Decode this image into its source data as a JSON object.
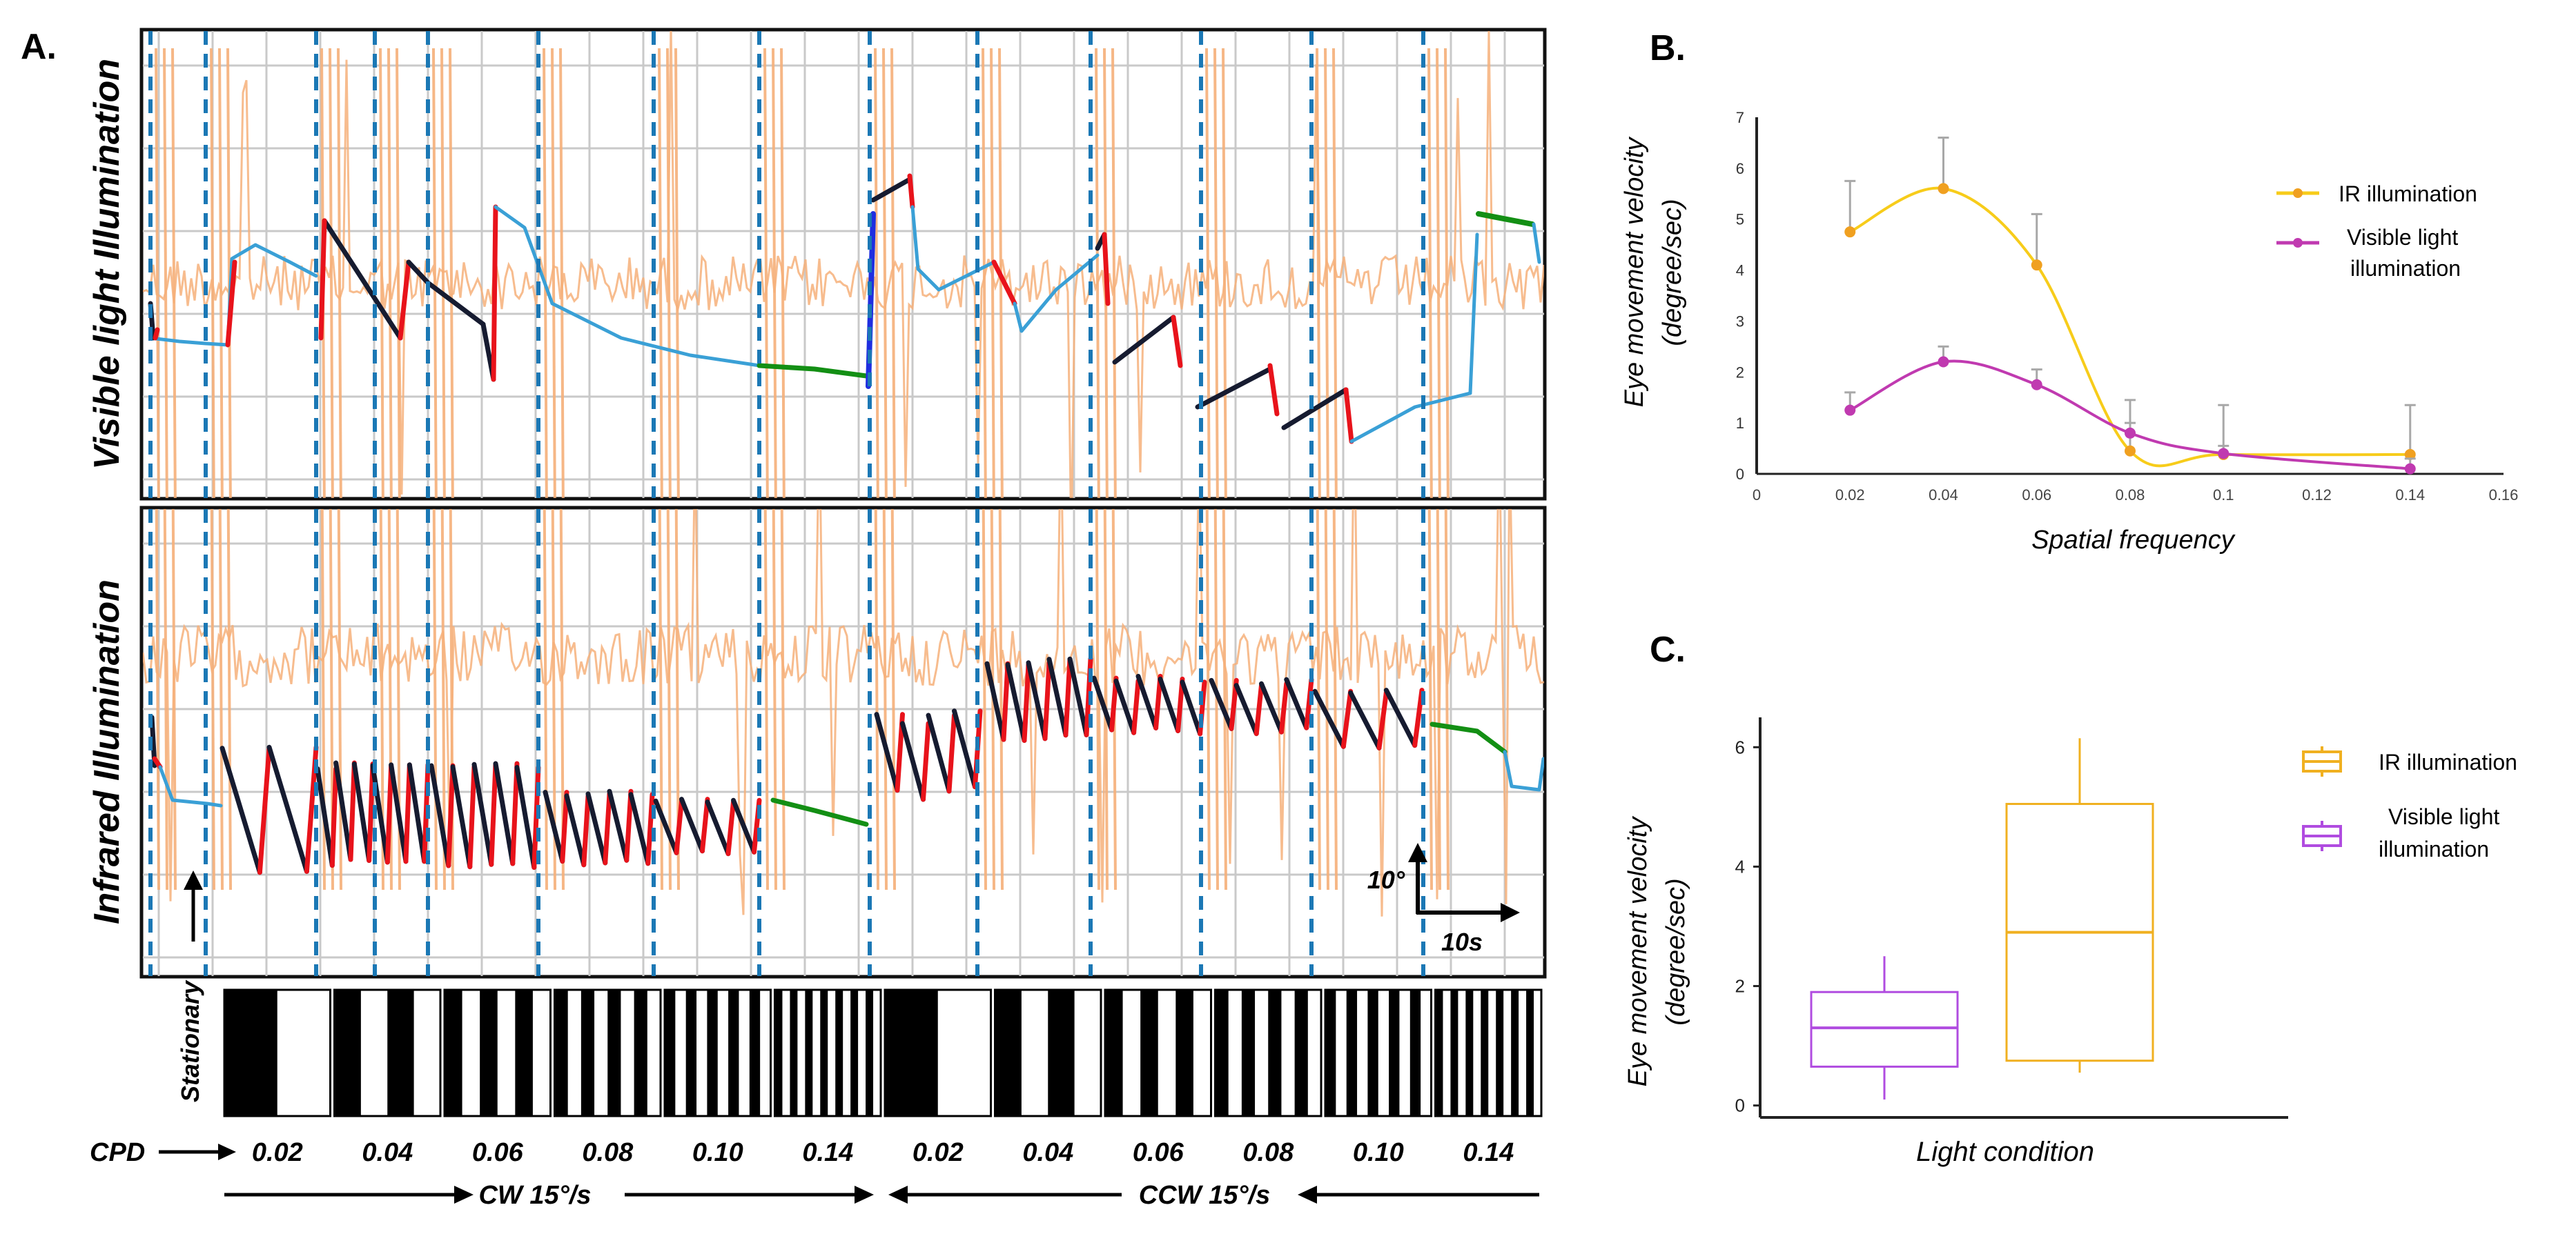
{
  "panels": {
    "a": {
      "letter": "A.",
      "top_label": "Visible light Illumination",
      "bottom_label": "Infrared Illumination",
      "stationary_label": "Stationary",
      "cpd_label": "CPD",
      "scale_vertical": "10°",
      "scale_horizontal": "10s",
      "cw_label": "CW 15°/s",
      "ccw_label": "CCW 15°/s",
      "frequencies": [
        "0.02",
        "0.04",
        "0.06",
        "0.08",
        "0.10",
        "0.14",
        "0.02",
        "0.04",
        "0.06",
        "0.08",
        "0.10",
        "0.14"
      ],
      "stripe_counts": [
        1,
        2,
        3,
        4,
        5,
        7,
        1,
        2,
        3,
        4,
        5,
        7
      ],
      "colors": {
        "raw_trace": "#f6b07a",
        "eye_trace": "#3aa0d6",
        "slow_phase": "#161b30",
        "fast_phase": "#e8131b",
        "upward": "#1f2ee0",
        "stationary_segment": "#138f14",
        "marker": "#1b78b5"
      }
    },
    "b": {
      "letter": "B.",
      "chart_data": {
        "type": "line",
        "title": "",
        "xlabel": "Spatial frequency",
        "ylabel_line1": "Eye movement velocity",
        "ylabel_line2": "(degree/sec)",
        "xlim": [
          0,
          0.16
        ],
        "ylim": [
          0,
          7
        ],
        "xticks": [
          "0",
          "0.02",
          "0.04",
          "0.06",
          "0.08",
          "0.1",
          "0.12",
          "0.14",
          "0.16"
        ],
        "yticks": [
          "0",
          "1",
          "2",
          "3",
          "4",
          "5",
          "6",
          "7"
        ],
        "x": [
          0.02,
          0.04,
          0.06,
          0.08,
          0.1,
          0.14
        ],
        "series": [
          {
            "name": "IR illumination",
            "color": "#f0a020",
            "line_color": "#f7cc1a",
            "values": [
              4.75,
              5.6,
              4.1,
              0.45,
              0.38,
              0.38
            ],
            "err_upper": [
              5.75,
              6.6,
              5.1,
              1.45,
              1.35,
              1.35
            ]
          },
          {
            "name": "Visible light illumination",
            "color": "#c03ab0",
            "line_color": "#c03ab0",
            "values": [
              1.25,
              2.2,
              1.75,
              0.8,
              0.4,
              0.1
            ],
            "err_upper": [
              1.6,
              2.5,
              2.05,
              1.0,
              0.55,
              0.3
            ]
          }
        ],
        "legend": [
          "IR illumination",
          "Visible light",
          "illumination"
        ]
      }
    },
    "c": {
      "letter": "C.",
      "chart_data": {
        "type": "box",
        "xlabel": "Light condition",
        "ylabel_line1": "Eye movement velocity",
        "ylabel_line2": "(degree/sec)",
        "ylim": [
          -0.2,
          6.5
        ],
        "yticks": [
          "0",
          "2",
          "4",
          "6"
        ],
        "series": [
          {
            "name": "Visible light illumination",
            "color": "#b04ce0",
            "min": 0.1,
            "q1": 0.65,
            "median": 1.3,
            "q3": 1.9,
            "max": 2.5
          },
          {
            "name": "IR illumination",
            "color": "#f0b020",
            "min": 0.55,
            "q1": 0.75,
            "median": 2.9,
            "q3": 5.05,
            "max": 6.15
          }
        ],
        "legend": [
          "IR illumination",
          "Visible light",
          "illumination"
        ]
      }
    }
  }
}
